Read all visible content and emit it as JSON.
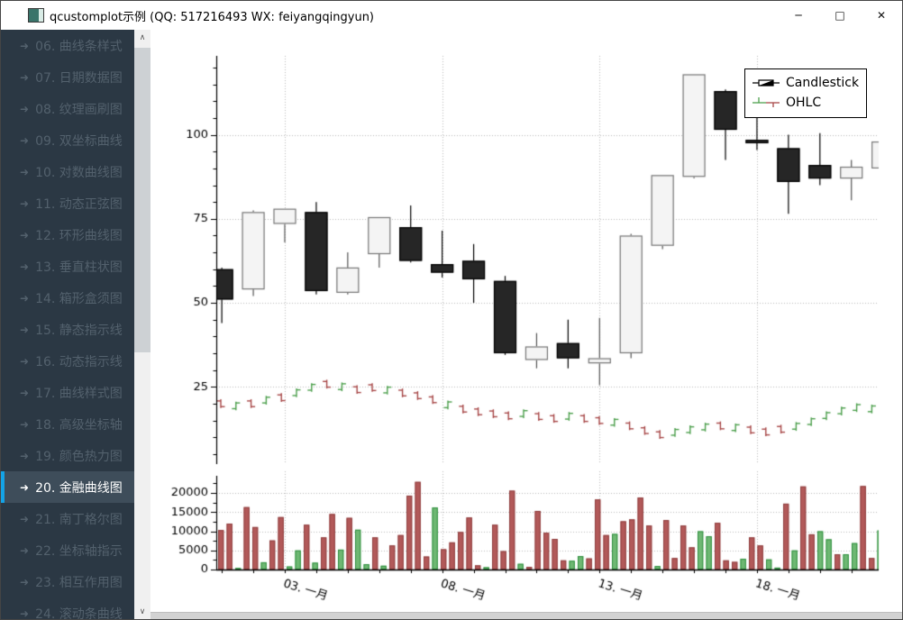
{
  "window": {
    "title": "qcustomplot示例 (QQ: 517216493 WX: feiyangqingyun)",
    "controls": {
      "minimize": "─",
      "maximize": "□",
      "close": "✕"
    }
  },
  "sidebar": {
    "items": [
      {
        "label": "06. 曲线条样式",
        "selected": false
      },
      {
        "label": "07. 日期数据图",
        "selected": false
      },
      {
        "label": "08. 纹理画刷图",
        "selected": false
      },
      {
        "label": "09. 双坐标曲线",
        "selected": false
      },
      {
        "label": "10. 对数曲线图",
        "selected": false
      },
      {
        "label": "11. 动态正弦图",
        "selected": false
      },
      {
        "label": "12. 环形曲线图",
        "selected": false
      },
      {
        "label": "13. 垂直柱状图",
        "selected": false
      },
      {
        "label": "14. 箱形盒须图",
        "selected": false
      },
      {
        "label": "15. 静态指示线",
        "selected": false
      },
      {
        "label": "16. 动态指示线",
        "selected": false
      },
      {
        "label": "17. 曲线样式图",
        "selected": false
      },
      {
        "label": "18. 高级坐标轴",
        "selected": false
      },
      {
        "label": "19. 颜色热力图",
        "selected": false
      },
      {
        "label": "20. 金融曲线图",
        "selected": true
      },
      {
        "label": "21. 南丁格尔图",
        "selected": false
      },
      {
        "label": "22. 坐标轴指示",
        "selected": false
      },
      {
        "label": "23. 相互作用图",
        "selected": false
      },
      {
        "label": "24. 滚动条曲线",
        "selected": false
      }
    ],
    "arrow_glyph": "➜"
  },
  "scrollbar": {
    "up_glyph": "∧",
    "down_glyph": "∨"
  },
  "legend": {
    "items": [
      {
        "label": "Candlestick"
      },
      {
        "label": "OHLC"
      }
    ]
  },
  "chart_data": {
    "type": "candlestick",
    "title": "",
    "main": {
      "ylim": [
        2,
        123.5
      ],
      "yticks": [
        {
          "v": 100,
          "label": "100"
        },
        {
          "v": 75,
          "label": "75"
        },
        {
          "v": 50,
          "label": "50"
        },
        {
          "v": 25,
          "label": "25"
        }
      ],
      "xticks": [
        {
          "day": 3,
          "label": "03. 一月"
        },
        {
          "day": 8,
          "label": "08. 一月"
        },
        {
          "day": 13,
          "label": "13. 一月"
        },
        {
          "day": 18,
          "label": "18. 一月"
        }
      ],
      "candles_ohlc": [
        [
          60,
          60.5,
          44,
          51
        ],
        [
          54,
          77.5,
          52,
          77
        ],
        [
          73.5,
          78,
          68,
          78
        ],
        [
          77,
          80,
          52.5,
          53.5
        ],
        [
          53,
          65,
          52.5,
          60.5
        ],
        [
          64.5,
          75.5,
          60.5,
          75.5
        ],
        [
          72.5,
          79,
          62,
          62.5
        ],
        [
          61.5,
          71.5,
          57.5,
          59
        ],
        [
          62.5,
          67.5,
          50,
          57
        ],
        [
          56.5,
          58,
          34.5,
          35
        ],
        [
          33,
          41,
          30.5,
          37
        ],
        [
          38,
          45,
          30.5,
          33.5
        ],
        [
          32,
          45.5,
          25.5,
          33.5
        ],
        [
          35,
          70.5,
          33.5,
          70
        ],
        [
          67,
          88,
          66,
          88
        ],
        [
          87.5,
          118,
          87,
          118
        ],
        [
          113,
          113.5,
          92.5,
          101.5
        ],
        [
          98.5,
          106,
          95.5,
          97.5
        ],
        [
          96,
          100,
          76.5,
          86
        ],
        [
          91,
          100.5,
          85,
          87
        ],
        [
          87,
          92.5,
          80.5,
          90.5
        ],
        [
          90,
          98.5,
          89.5,
          98
        ]
      ],
      "ohlc_series": [
        [
          20.8,
          21.3,
          18.7,
          19.1
        ],
        [
          18.5,
          20.6,
          18.0,
          20.2
        ],
        [
          20.8,
          21.3,
          18.7,
          19.1
        ],
        [
          20.2,
          22.3,
          19.7,
          21.9
        ],
        [
          22.6,
          23.1,
          20.5,
          20.9
        ],
        [
          22.4,
          24.5,
          21.9,
          24.1
        ],
        [
          24.0,
          26.1,
          23.5,
          25.7
        ],
        [
          26.6,
          27.1,
          24.5,
          24.9
        ],
        [
          24.2,
          26.3,
          23.7,
          25.9
        ],
        [
          25.0,
          25.5,
          22.9,
          23.3
        ],
        [
          25.6,
          26.1,
          23.5,
          23.9
        ],
        [
          23.2,
          25.3,
          22.7,
          24.9
        ],
        [
          24.0,
          24.5,
          21.9,
          22.3
        ],
        [
          23.2,
          23.7,
          21.1,
          21.5
        ],
        [
          22.0,
          22.5,
          19.9,
          20.3
        ],
        [
          18.8,
          20.9,
          18.3,
          20.5
        ],
        [
          19.2,
          19.7,
          17.1,
          17.5
        ],
        [
          18.4,
          18.9,
          16.3,
          16.7
        ],
        [
          17.8,
          18.3,
          15.7,
          16.1
        ],
        [
          17.2,
          17.7,
          15.1,
          15.5
        ],
        [
          16.2,
          18.3,
          15.7,
          17.9
        ],
        [
          17.0,
          17.5,
          14.9,
          15.3
        ],
        [
          16.4,
          16.9,
          14.3,
          14.7
        ],
        [
          15.4,
          17.5,
          14.9,
          17.1
        ],
        [
          16.4,
          16.9,
          14.3,
          14.7
        ],
        [
          15.8,
          16.3,
          13.7,
          14.1
        ],
        [
          13.6,
          15.7,
          13.1,
          15.3
        ],
        [
          14.2,
          14.7,
          12.1,
          12.5
        ],
        [
          12.8,
          13.3,
          10.7,
          11.1
        ],
        [
          11.6,
          12.1,
          9.5,
          9.9
        ],
        [
          10.6,
          12.7,
          10.1,
          12.3
        ],
        [
          11.4,
          13.5,
          10.9,
          13.1
        ],
        [
          12.2,
          14.3,
          11.7,
          13.9
        ],
        [
          14.2,
          14.7,
          12.1,
          12.5
        ],
        [
          12.0,
          14.1,
          11.5,
          13.7
        ],
        [
          13.0,
          13.5,
          10.9,
          11.3
        ],
        [
          12.4,
          12.9,
          10.3,
          10.7
        ],
        [
          13.2,
          13.7,
          11.1,
          11.5
        ],
        [
          12.4,
          14.5,
          11.9,
          14.1
        ],
        [
          13.8,
          15.9,
          13.3,
          15.5
        ],
        [
          15.6,
          17.7,
          15.1,
          17.3
        ],
        [
          17.0,
          19.1,
          16.5,
          18.7
        ],
        [
          18.0,
          20.1,
          17.5,
          19.7
        ],
        [
          17.6,
          19.7,
          17.1,
          19.3
        ]
      ]
    },
    "volume": {
      "ylim": [
        0,
        23300
      ],
      "yticks": [
        {
          "v": 0,
          "label": "0"
        },
        {
          "v": 5000,
          "label": "5000"
        },
        {
          "v": 10000,
          "label": "10000"
        },
        {
          "v": 15000,
          "label": "15000"
        },
        {
          "v": 20000,
          "label": "20000"
        }
      ],
      "bars": [
        [
          10300,
          "n"
        ],
        [
          12000,
          "n"
        ],
        [
          400,
          "p"
        ],
        [
          16300,
          "n"
        ],
        [
          11100,
          "n"
        ],
        [
          1900,
          "p"
        ],
        [
          7600,
          "n"
        ],
        [
          13700,
          "n"
        ],
        [
          800,
          "p"
        ],
        [
          5000,
          "p"
        ],
        [
          11700,
          "n"
        ],
        [
          1800,
          "p"
        ],
        [
          8400,
          "n"
        ],
        [
          14500,
          "n"
        ],
        [
          5200,
          "p"
        ],
        [
          13500,
          "n"
        ],
        [
          10400,
          "p"
        ],
        [
          1400,
          "p"
        ],
        [
          8400,
          "n"
        ],
        [
          1000,
          "p"
        ],
        [
          6300,
          "n"
        ],
        [
          9000,
          "n"
        ],
        [
          19300,
          "n"
        ],
        [
          22900,
          "n"
        ],
        [
          3400,
          "n"
        ],
        [
          16200,
          "p"
        ],
        [
          5300,
          "n"
        ],
        [
          7100,
          "n"
        ],
        [
          9800,
          "n"
        ],
        [
          13600,
          "n"
        ],
        [
          1100,
          "n"
        ],
        [
          600,
          "p"
        ],
        [
          11700,
          "n"
        ],
        [
          4800,
          "n"
        ],
        [
          20600,
          "n"
        ],
        [
          1500,
          "p"
        ],
        [
          700,
          "n"
        ],
        [
          15300,
          "n"
        ],
        [
          9600,
          "n"
        ],
        [
          8000,
          "n"
        ],
        [
          2400,
          "n"
        ],
        [
          2300,
          "p"
        ],
        [
          3500,
          "p"
        ],
        [
          2900,
          "n"
        ],
        [
          18300,
          "n"
        ],
        [
          9000,
          "n"
        ],
        [
          9300,
          "p"
        ],
        [
          12600,
          "n"
        ],
        [
          13100,
          "n"
        ],
        [
          18800,
          "n"
        ],
        [
          11500,
          "n"
        ],
        [
          900,
          "p"
        ],
        [
          12900,
          "n"
        ],
        [
          3000,
          "n"
        ],
        [
          11500,
          "n"
        ],
        [
          5800,
          "n"
        ],
        [
          10000,
          "p"
        ],
        [
          8700,
          "p"
        ],
        [
          12200,
          "n"
        ],
        [
          2400,
          "n"
        ],
        [
          2000,
          "n"
        ],
        [
          2800,
          "p"
        ],
        [
          8400,
          "n"
        ],
        [
          6300,
          "n"
        ],
        [
          2650,
          "p"
        ],
        [
          500,
          "p"
        ],
        [
          17200,
          "n"
        ],
        [
          5000,
          "p"
        ],
        [
          21700,
          "n"
        ],
        [
          9200,
          "n"
        ],
        [
          10000,
          "p"
        ],
        [
          7900,
          "p"
        ],
        [
          4000,
          "n"
        ],
        [
          4000,
          "p"
        ],
        [
          6900,
          "p"
        ],
        [
          21800,
          "n"
        ],
        [
          3000,
          "n"
        ],
        [
          10200,
          "p"
        ]
      ]
    },
    "colors": {
      "candle_pos_fill": "#f4f4f4",
      "candle_pos_border": "#777777",
      "candle_neg_fill": "#262626",
      "candle_neg_border": "#000000",
      "ohlc_pos": "#4da04d",
      "ohlc_neg": "#a84848",
      "vol_pos_fill": "#6fb873",
      "vol_pos_border": "#2f8f3f",
      "vol_neg_fill": "#b25959",
      "vol_neg_border": "#8f3f3f",
      "grid": "#bdbdbd",
      "axis": "#000000",
      "accent_blue": "#14a3e6"
    }
  }
}
